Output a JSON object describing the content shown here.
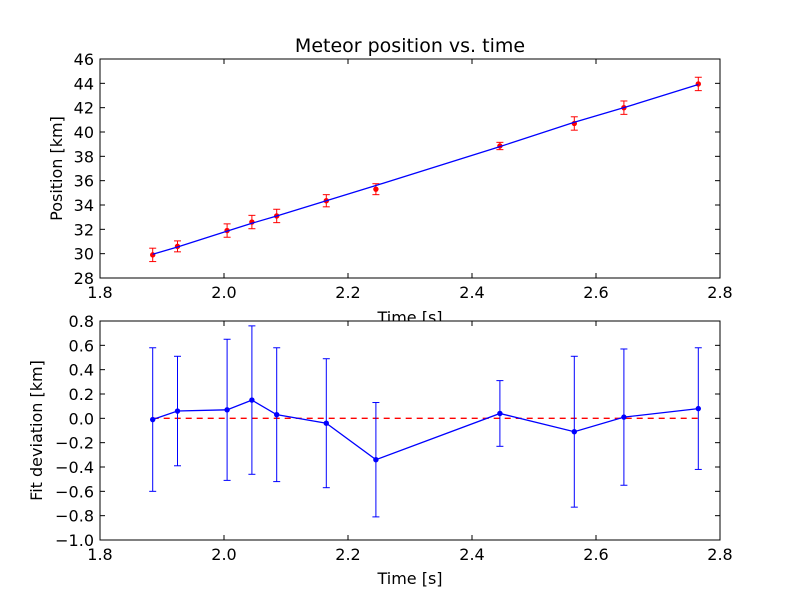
{
  "chart_data": [
    {
      "type": "scatter",
      "title": "Meteor position vs. time",
      "xlabel": "Time [s]",
      "ylabel": "Position [km]",
      "xlim": [
        1.8,
        2.8
      ],
      "ylim": [
        28,
        46
      ],
      "xticks": [
        "1.8",
        "2.0",
        "2.2",
        "2.4",
        "2.6",
        "2.8"
      ],
      "yticks": [
        "28",
        "30",
        "32",
        "34",
        "36",
        "38",
        "40",
        "42",
        "44",
        "46"
      ],
      "grid": false,
      "series": [
        {
          "kind": "points-with-error-bars",
          "color": "#ff0000",
          "x": [
            1.885,
            1.925,
            2.005,
            2.045,
            2.085,
            2.165,
            2.245,
            2.445,
            2.565,
            2.645,
            2.765
          ],
          "y": [
            29.9,
            30.6,
            31.9,
            32.6,
            33.1,
            34.35,
            35.3,
            38.85,
            40.7,
            42.0,
            43.95
          ],
          "yerr": [
            0.55,
            0.45,
            0.55,
            0.55,
            0.55,
            0.5,
            0.45,
            0.3,
            0.55,
            0.55,
            0.55
          ]
        },
        {
          "kind": "fit-line",
          "color": "#0000ff",
          "x": [
            1.885,
            1.925,
            2.005,
            2.045,
            2.085,
            2.165,
            2.245,
            2.445,
            2.565,
            2.645,
            2.765
          ],
          "y": [
            29.95,
            30.55,
            31.85,
            32.5,
            33.1,
            34.35,
            35.6,
            38.8,
            40.8,
            42.0,
            43.9
          ]
        }
      ]
    },
    {
      "type": "line",
      "title": "",
      "xlabel": "Time [s]",
      "ylabel": "Fit deviation [km]",
      "xlim": [
        1.8,
        2.8
      ],
      "ylim": [
        -1.0,
        0.8
      ],
      "xticks": [
        "1.8",
        "2.0",
        "2.2",
        "2.4",
        "2.6",
        "2.8"
      ],
      "yticks": [
        "−1.0",
        "−0.8",
        "−0.6",
        "−0.4",
        "−0.2",
        "0.0",
        "0.2",
        "0.4",
        "0.6",
        "0.8"
      ],
      "grid": false,
      "reference_line": {
        "y": 0.0,
        "color": "#ff0000",
        "style": "dashed"
      },
      "series": [
        {
          "kind": "line-with-error-bars",
          "color": "#0000ff",
          "x": [
            1.885,
            1.925,
            2.005,
            2.045,
            2.085,
            2.165,
            2.245,
            2.445,
            2.565,
            2.645,
            2.765
          ],
          "y": [
            -0.01,
            0.06,
            0.07,
            0.15,
            0.03,
            -0.04,
            -0.34,
            0.04,
            -0.11,
            0.01,
            0.08
          ],
          "yerr": [
            0.59,
            0.45,
            0.58,
            0.61,
            0.55,
            0.53,
            0.47,
            0.27,
            0.62,
            0.56,
            0.5
          ]
        }
      ]
    }
  ]
}
